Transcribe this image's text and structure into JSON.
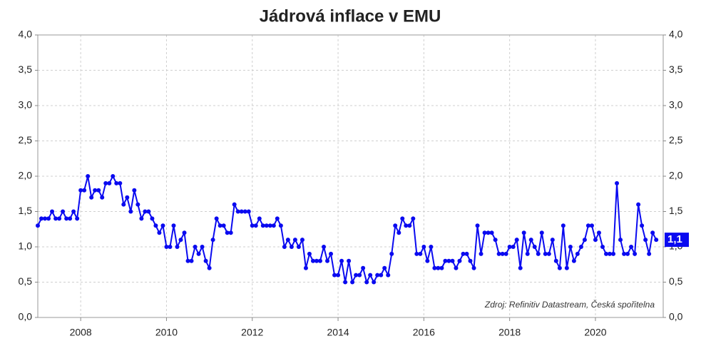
{
  "chart_data": {
    "type": "line",
    "title": "Jádrová inflace v EMU",
    "annotation": "Zdroj: Refinitiv Datastream, Česká spořitelna",
    "xlim": [
      2007,
      2021.58
    ],
    "xticks": [
      2008,
      2010,
      2012,
      2014,
      2016,
      2018,
      2020
    ],
    "ylim": [
      0,
      4
    ],
    "yticks": [
      {
        "value": 0,
        "label": "0,0"
      },
      {
        "value": 0.5,
        "label": "0,5"
      },
      {
        "value": 1,
        "label": "1,0"
      },
      {
        "value": 1.5,
        "label": "1,5"
      },
      {
        "value": 2,
        "label": "2,0"
      },
      {
        "value": 2.5,
        "label": "2,5"
      },
      {
        "value": 3,
        "label": "3,0"
      },
      {
        "value": 3.5,
        "label": "3,5"
      },
      {
        "value": 4,
        "label": "4,0"
      }
    ],
    "y2lim": [
      0,
      4
    ],
    "y2ticks": [
      {
        "value": 0,
        "label": "0,0"
      },
      {
        "value": 0.5,
        "label": "0,5"
      },
      {
        "value": 1,
        "label": "1,0"
      },
      {
        "value": 1.5,
        "label": "1,5"
      },
      {
        "value": 2,
        "label": "2,0"
      },
      {
        "value": 2.5,
        "label": "2,5"
      },
      {
        "value": 3,
        "label": "3,0"
      },
      {
        "value": 3.5,
        "label": "3,5"
      },
      {
        "value": 4,
        "label": "4,0"
      }
    ],
    "grid": true,
    "x": [
      2007.0,
      2007.083,
      2007.167,
      2007.25,
      2007.333,
      2007.417,
      2007.5,
      2007.583,
      2007.667,
      2007.75,
      2007.833,
      2007.917,
      2008.0,
      2008.083,
      2008.167,
      2008.25,
      2008.333,
      2008.417,
      2008.5,
      2008.583,
      2008.667,
      2008.75,
      2008.833,
      2008.917,
      2009.0,
      2009.083,
      2009.167,
      2009.25,
      2009.333,
      2009.417,
      2009.5,
      2009.583,
      2009.667,
      2009.75,
      2009.833,
      2009.917,
      2010.0,
      2010.083,
      2010.167,
      2010.25,
      2010.333,
      2010.417,
      2010.5,
      2010.583,
      2010.667,
      2010.75,
      2010.833,
      2010.917,
      2011.0,
      2011.083,
      2011.167,
      2011.25,
      2011.333,
      2011.417,
      2011.5,
      2011.583,
      2011.667,
      2011.75,
      2011.833,
      2011.917,
      2012.0,
      2012.083,
      2012.167,
      2012.25,
      2012.333,
      2012.417,
      2012.5,
      2012.583,
      2012.667,
      2012.75,
      2012.833,
      2012.917,
      2013.0,
      2013.083,
      2013.167,
      2013.25,
      2013.333,
      2013.417,
      2013.5,
      2013.583,
      2013.667,
      2013.75,
      2013.833,
      2013.917,
      2014.0,
      2014.083,
      2014.167,
      2014.25,
      2014.333,
      2014.417,
      2014.5,
      2014.583,
      2014.667,
      2014.75,
      2014.833,
      2014.917,
      2015.0,
      2015.083,
      2015.167,
      2015.25,
      2015.333,
      2015.417,
      2015.5,
      2015.583,
      2015.667,
      2015.75,
      2015.833,
      2015.917,
      2016.0,
      2016.083,
      2016.167,
      2016.25,
      2016.333,
      2016.417,
      2016.5,
      2016.583,
      2016.667,
      2016.75,
      2016.833,
      2016.917,
      2017.0,
      2017.083,
      2017.167,
      2017.25,
      2017.333,
      2017.417,
      2017.5,
      2017.583,
      2017.667,
      2017.75,
      2017.833,
      2017.917,
      2018.0,
      2018.083,
      2018.167,
      2018.25,
      2018.333,
      2018.417,
      2018.5,
      2018.583,
      2018.667,
      2018.75,
      2018.833,
      2018.917,
      2019.0,
      2019.083,
      2019.167,
      2019.25,
      2019.333,
      2019.417,
      2019.5,
      2019.583,
      2019.667,
      2019.75,
      2019.833,
      2019.917,
      2020.0,
      2020.083,
      2020.167,
      2020.25,
      2020.333,
      2020.417,
      2020.5,
      2020.583,
      2020.667,
      2020.75,
      2020.833,
      2020.917,
      2021.0,
      2021.083,
      2021.167,
      2021.25,
      2021.333,
      2021.417
    ],
    "series": [
      {
        "color": "#0a0af0",
        "values": [
          1.3,
          1.4,
          1.4,
          1.4,
          1.5,
          1.4,
          1.4,
          1.5,
          1.4,
          1.4,
          1.5,
          1.4,
          1.8,
          1.8,
          2.0,
          1.7,
          1.8,
          1.8,
          1.7,
          1.9,
          1.9,
          2.0,
          1.9,
          1.9,
          1.6,
          1.7,
          1.5,
          1.8,
          1.6,
          1.4,
          1.5,
          1.5,
          1.4,
          1.3,
          1.2,
          1.3,
          1.0,
          1.0,
          1.3,
          1.0,
          1.1,
          1.2,
          0.8,
          0.8,
          1.0,
          0.9,
          1.0,
          0.8,
          0.7,
          1.1,
          1.4,
          1.3,
          1.3,
          1.2,
          1.2,
          1.6,
          1.5,
          1.5,
          1.5,
          1.5,
          1.3,
          1.3,
          1.4,
          1.3,
          1.3,
          1.3,
          1.3,
          1.4,
          1.3,
          1.0,
          1.1,
          1.0,
          1.1,
          1.0,
          1.1,
          0.7,
          0.9,
          0.8,
          0.8,
          0.8,
          1.0,
          0.8,
          0.9,
          0.6,
          0.6,
          0.8,
          0.5,
          0.8,
          0.5,
          0.6,
          0.6,
          0.7,
          0.5,
          0.6,
          0.5,
          0.6,
          0.6,
          0.7,
          0.6,
          0.9,
          1.3,
          1.2,
          1.4,
          1.3,
          1.3,
          1.4,
          0.9,
          0.9,
          1.0,
          0.8,
          1.0,
          0.7,
          0.7,
          0.7,
          0.8,
          0.8,
          0.8,
          0.7,
          0.8,
          0.9,
          0.9,
          0.8,
          0.7,
          1.3,
          0.9,
          1.2,
          1.2,
          1.2,
          1.1,
          0.9,
          0.9,
          0.9,
          1.0,
          1.0,
          1.1,
          0.7,
          1.2,
          0.9,
          1.1,
          1.0,
          0.9,
          1.2,
          0.9,
          0.9,
          1.1,
          0.8,
          0.7,
          1.3,
          0.7,
          1.0,
          0.8,
          0.9,
          1.0,
          1.1,
          1.3,
          1.3,
          1.1,
          1.2,
          1.0,
          0.9,
          0.9,
          0.9,
          1.9,
          1.1,
          0.9,
          0.9,
          1.0,
          0.9,
          1.6,
          1.3,
          1.1,
          0.9,
          1.2,
          1.1
        ],
        "end_label": {
          "value": 1.1,
          "label": "1,1"
        }
      }
    ]
  }
}
